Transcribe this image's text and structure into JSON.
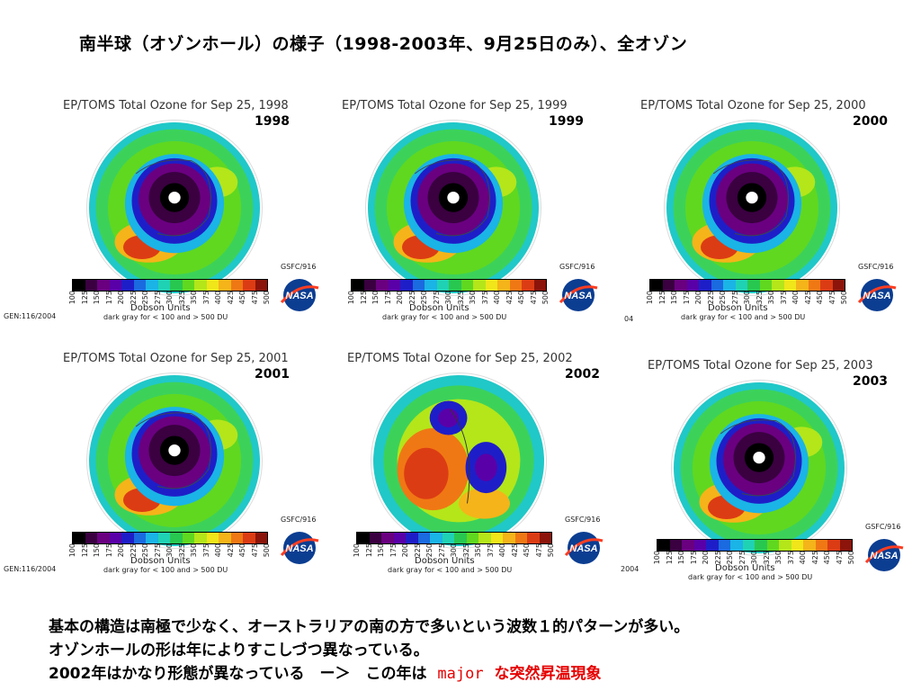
{
  "slide_title": "南半球（オゾンホール）の様子（1998-2003年、9月25日のみ）、全オゾン",
  "panels": [
    {
      "title": "EP/TOMS Total Ozone for Sep 25, 1998",
      "year": "1998",
      "variant": "hole"
    },
    {
      "title": "EP/TOMS Total Ozone for Sep 25, 1999",
      "year": "1999",
      "variant": "hole"
    },
    {
      "title": "EP/TOMS Total Ozone for Sep 25, 2000",
      "year": "2000",
      "variant": "hole"
    },
    {
      "title": "EP/TOMS Total Ozone for Sep 25, 2001",
      "year": "2001",
      "variant": "hole"
    },
    {
      "title": "EP/TOMS Total Ozone for Sep 25, 2002",
      "year": "2002",
      "variant": "split"
    },
    {
      "title": "EP/TOMS Total Ozone for Sep 25, 2003",
      "year": "2003",
      "variant": "hole"
    }
  ],
  "colorbar": {
    "ticks": [
      "100",
      "125",
      "150",
      "175",
      "200",
      "225",
      "250",
      "275",
      "300",
      "325",
      "350",
      "375",
      "400",
      "425",
      "450",
      "475",
      "500"
    ],
    "colors": [
      "#000000",
      "#3a0040",
      "#6a0080",
      "#5a00a8",
      "#1e1ec8",
      "#1a6ae0",
      "#1ab4e6",
      "#20d2b4",
      "#28c850",
      "#60d820",
      "#b4e61a",
      "#f0e61a",
      "#f5b419",
      "#f07814",
      "#dc3c14",
      "#8c140a"
    ],
    "units_label": "Dobson Units",
    "note": "dark gray for < 100 and > 500 DU"
  },
  "credit": "GSFC/916",
  "logo_text": "NASA",
  "gen_labels": [
    "GEN:116/2004",
    "04",
    "GEN:116/2004",
    "2004"
  ],
  "body": {
    "line1": "基本の構造は南極で少なく、オーストラリアの南の方で多いという波数１的パターンが多い。",
    "line2": "オゾンホールの形は年によりすこしづつ異なっている。",
    "line3_a": "2002年はかなり形態が異なっている　ー＞　この年は",
    "line3_b": "major",
    "line3_c": "な突然昇温現象"
  }
}
